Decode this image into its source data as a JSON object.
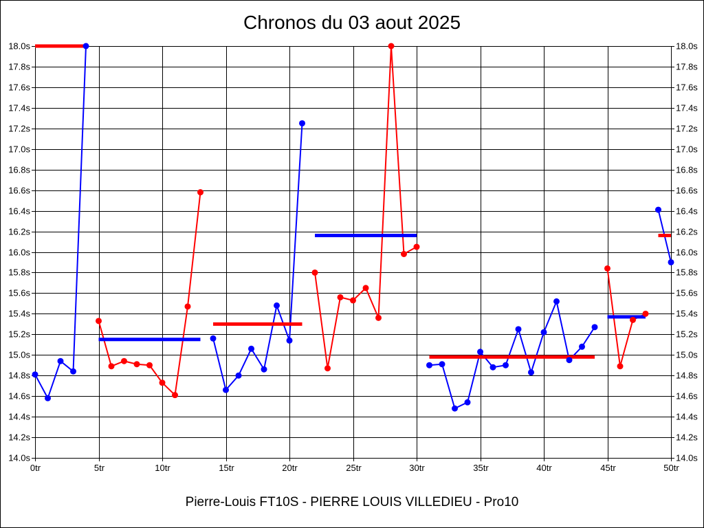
{
  "window": {
    "title": "Chronos du 03 aout 2025"
  },
  "chart_data": {
    "type": "line",
    "title": "Chronos du 03 aout 2025",
    "caption": "Pierre-Louis FT10S - PIERRE LOUIS VILLEDIEU - Pro10",
    "x_unit": "tr",
    "y_unit": "s",
    "xlim": [
      0,
      50
    ],
    "ylim": [
      14.0,
      18.0
    ],
    "x_tick_step": 5,
    "y_tick_step": 0.2,
    "grid": true,
    "legend": false,
    "x_tick_labels": [
      "0tr",
      "5tr",
      "10tr",
      "15tr",
      "20tr",
      "25tr",
      "30tr",
      "35tr",
      "40tr",
      "45tr",
      "50tr"
    ],
    "y_tick_labels": [
      "18.0s",
      "17.8s",
      "17.6s",
      "17.4s",
      "17.2s",
      "17.0s",
      "16.8s",
      "16.6s",
      "16.4s",
      "16.2s",
      "16.0s",
      "15.8s",
      "15.6s",
      "15.4s",
      "15.2s",
      "15.0s",
      "14.8s",
      "14.6s",
      "14.4s",
      "14.2s",
      "14.0s"
    ],
    "colors": {
      "driver_blue": "#0000ff",
      "driver_red": "#ff0000",
      "grid": "#000000",
      "background": "#ffffff"
    },
    "stints": [
      {
        "name": "stint-1",
        "start_lap": 0,
        "point_color": "#0000ff",
        "avg_color": "#ff0000",
        "avg_time": 18.0,
        "lap_times": [
          14.81,
          14.58,
          14.94,
          14.84,
          18.0
        ]
      },
      {
        "name": "stint-2",
        "start_lap": 5,
        "point_color": "#ff0000",
        "avg_color": "#0000ff",
        "avg_time": 15.15,
        "lap_times": [
          15.33,
          14.89,
          14.94,
          14.91,
          14.9,
          14.73,
          14.61,
          15.47,
          16.58
        ]
      },
      {
        "name": "stint-3",
        "start_lap": 14,
        "point_color": "#0000ff",
        "avg_color": "#ff0000",
        "avg_time": 15.3,
        "lap_times": [
          15.16,
          14.66,
          14.8,
          15.06,
          14.86,
          15.48,
          15.14,
          17.25
        ]
      },
      {
        "name": "stint-4",
        "start_lap": 22,
        "point_color": "#ff0000",
        "avg_color": "#0000ff",
        "avg_time": 16.16,
        "lap_times": [
          15.8,
          14.87,
          15.56,
          15.53,
          15.65,
          15.36,
          18.0,
          15.98,
          16.05
        ]
      },
      {
        "name": "stint-5",
        "start_lap": 31,
        "point_color": "#0000ff",
        "avg_color": "#ff0000",
        "avg_time": 14.98,
        "lap_times": [
          14.9,
          14.91,
          14.48,
          14.54,
          15.03,
          14.88,
          14.9,
          15.25,
          14.83,
          15.22,
          15.52,
          14.95,
          15.08,
          15.27
        ]
      },
      {
        "name": "stint-6",
        "start_lap": 45,
        "point_color": "#ff0000",
        "avg_color": "#0000ff",
        "avg_time": 15.37,
        "lap_times": [
          15.84,
          14.89,
          15.34,
          15.4
        ]
      },
      {
        "name": "stint-7",
        "start_lap": 49,
        "point_color": "#0000ff",
        "avg_color": "#ff0000",
        "avg_time": 16.16,
        "lap_times": [
          16.41,
          15.9
        ]
      }
    ],
    "layout": {
      "plot_left": 50,
      "plot_top": 66,
      "plot_right": 975,
      "plot_bottom": 665,
      "tick_len": 5,
      "series_stroke": 2,
      "avg_stroke": 5,
      "marker_radius": 4.5,
      "tick_font_size": 13
    }
  }
}
